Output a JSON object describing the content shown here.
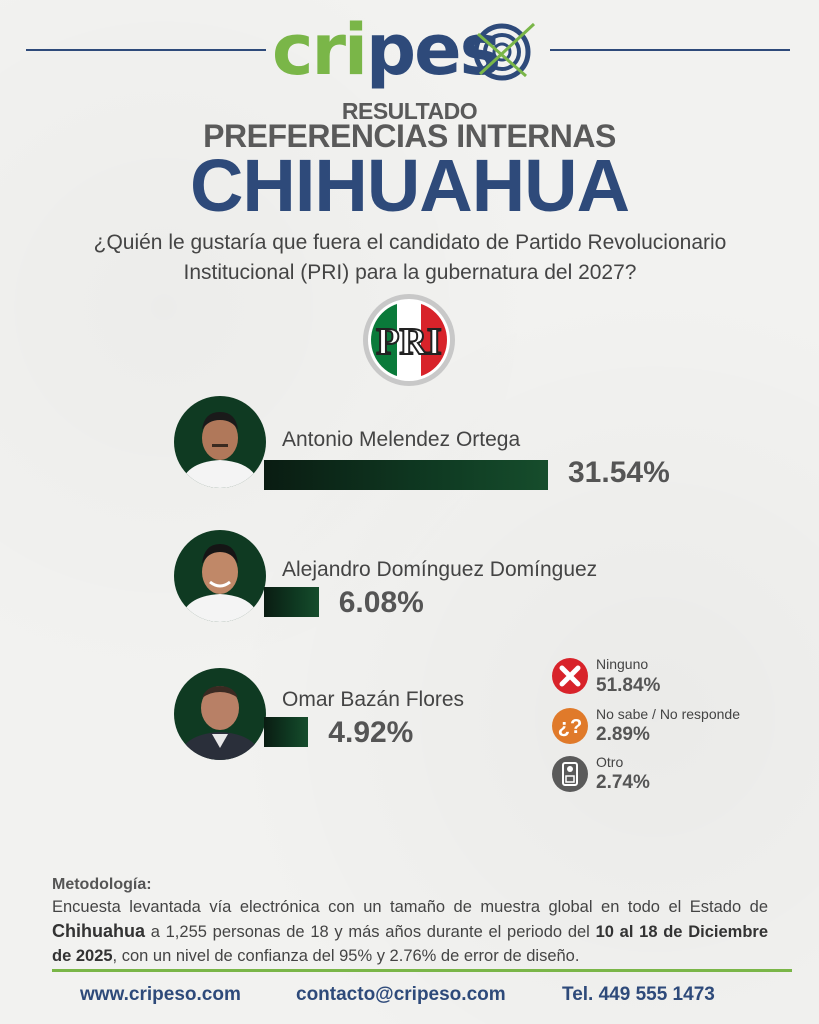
{
  "header": {
    "logo_left": "cripes",
    "resultado": "RESULTADO",
    "preferencias": "PREFERENCIAS INTERNAS",
    "state": "CHIHUAHUA",
    "question_line1": "¿Quién le gustaría que fuera el candidato de Partido Revolucionario",
    "question_line2": "Institucional (PRI) para la gubernatura del 2027?",
    "party_logo_text": "PRI"
  },
  "colors": {
    "navy": "#2e4a7a",
    "brand_green": "#7ab648",
    "bar_green": "#0f3a22",
    "pri_green": "#0a7a3a",
    "pri_red": "#d8232a",
    "ninguno_red": "#d8232a",
    "nosabe_orange": "#e07a2a",
    "otro_gray": "#5a5a5a"
  },
  "chart_data": {
    "type": "bar",
    "title": "CHIHUAHUA",
    "categories": [
      "Antonio Melendez Ortega",
      "Alejandro Domínguez Domínguez",
      "Omar Bazán Flores"
    ],
    "values": [
      31.54,
      6.08,
      4.92
    ],
    "value_labels": [
      "31.54%",
      "6.08%",
      "4.92%"
    ],
    "xlim": [
      0,
      100
    ],
    "other_responses": [
      {
        "label": "Ninguno",
        "value": 51.84,
        "value_label": "51.84%",
        "icon": "x-mark-icon"
      },
      {
        "label": "No sabe / No responde",
        "value": 2.89,
        "value_label": "2.89%",
        "icon": "question-icon"
      },
      {
        "label": "Otro",
        "value": 2.74,
        "value_label": "2.74%",
        "icon": "ballot-icon"
      }
    ]
  },
  "methodology": {
    "title": "Metodología:",
    "p1": "Encuesta levantada vía electrónica con un tamaño de muestra global en todo el Estado de",
    "state_bold": "Chihuahua",
    "p2": " a 1,255 personas de 18 y más años durante el periodo del ",
    "dates_bold": "10 al 18 de Diciembre de 2025",
    "p3": ", con un nivel de confianza del 95% y 2.76% de error de diseño."
  },
  "footer": {
    "website": "www.cripeso.com",
    "email": "contacto@cripeso.com",
    "phone": "Tel. 449 555 1473"
  }
}
